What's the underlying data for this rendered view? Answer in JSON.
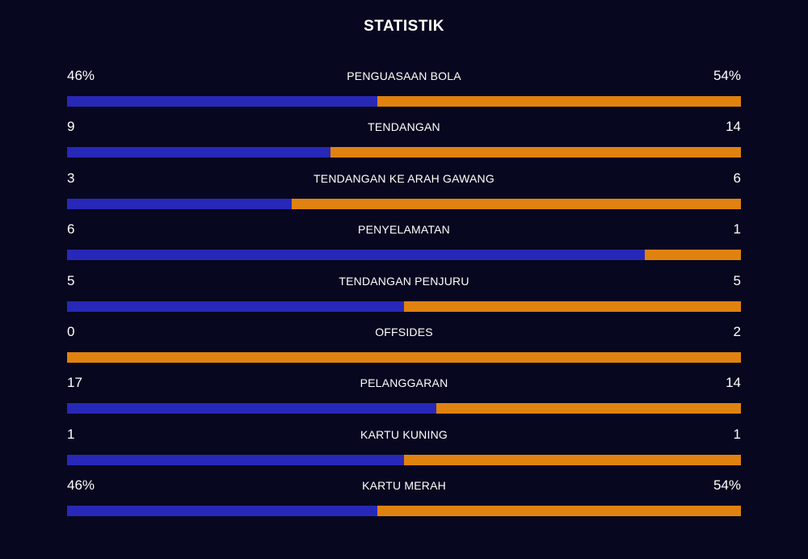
{
  "title": "STATISTIK",
  "colors": {
    "background": "#07071f",
    "home": "#2828b8",
    "away": "#e0820f"
  },
  "stats": [
    {
      "label": "PENGUASAAN BOLA",
      "home": "46%",
      "away": "54%",
      "home_share": 0.46
    },
    {
      "label": "TENDANGAN",
      "home": "9",
      "away": "14",
      "home_share": 0.391
    },
    {
      "label": "TENDANGAN KE ARAH GAWANG",
      "home": "3",
      "away": "6",
      "home_share": 0.333
    },
    {
      "label": "PENYELAMATAN",
      "home": "6",
      "away": "1",
      "home_share": 0.857
    },
    {
      "label": "TENDANGAN PENJURU",
      "home": "5",
      "away": "5",
      "home_share": 0.5
    },
    {
      "label": "OFFSIDES",
      "home": "0",
      "away": "2",
      "home_share": 0.0
    },
    {
      "label": "PELANGGARAN",
      "home": "17",
      "away": "14",
      "home_share": 0.548
    },
    {
      "label": "KARTU KUNING",
      "home": "1",
      "away": "1",
      "home_share": 0.5
    },
    {
      "label": "KARTU MERAH",
      "home": "46%",
      "away": "54%",
      "home_share": 0.46
    }
  ]
}
